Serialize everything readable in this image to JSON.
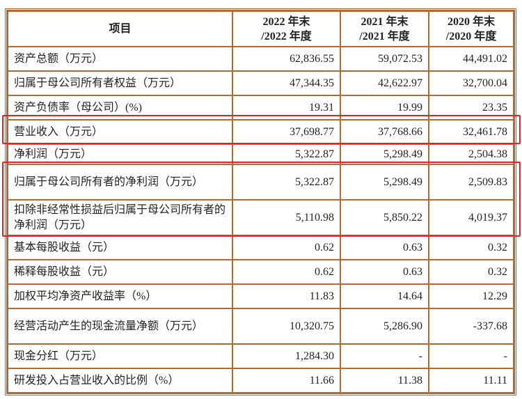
{
  "table": {
    "headers": [
      "项目",
      "2022年末\n/2022年度",
      "2021年末\n/2021年度",
      "2020年末\n/2020年度"
    ],
    "header_lines": [
      [
        "项目"
      ],
      [
        "2022 年末",
        "/2022 年度"
      ],
      [
        "2021 年末",
        "/2021 年度"
      ],
      [
        "2020 年末",
        "/2020 年度"
      ]
    ],
    "rows": [
      {
        "label": "资产总额（万元）",
        "values": [
          "62,836.55",
          "59,072.53",
          "44,491.02"
        ]
      },
      {
        "label": "归属于母公司所有者权益（万元）",
        "values": [
          "47,344.35",
          "42,622.97",
          "32,700.04"
        ]
      },
      {
        "label": "资产负债率（母公司）(%)",
        "values": [
          "19.31",
          "19.99",
          "23.35"
        ]
      },
      {
        "label": "营业收入（万元）",
        "values": [
          "37,698.77",
          "37,768.66",
          "32,461.78"
        ],
        "highlighted": true
      },
      {
        "label": "净利润（万元）",
        "values": [
          "5,322.87",
          "5,298.49",
          "2,504.38"
        ]
      },
      {
        "label": "归属于母公司所有者的净利润（万元）",
        "values": [
          "5,322.87",
          "5,298.49",
          "2,509.83"
        ],
        "highlighted": true
      },
      {
        "label": "扣除非经常性损益后归属于母公司所有者的净利润（万元）",
        "values": [
          "5,110.98",
          "5,850.22",
          "4,019.37"
        ],
        "highlighted": true
      },
      {
        "label": "基本每股收益（元）",
        "values": [
          "0.62",
          "0.63",
          "0.32"
        ]
      },
      {
        "label": "稀释每股收益（元）",
        "values": [
          "0.62",
          "0.63",
          "0.32"
        ]
      },
      {
        "label": "加权平均净资产收益率（%）",
        "values": [
          "11.83",
          "14.64",
          "12.29"
        ]
      },
      {
        "label": "经营活动产生的现金流量净额（万元）",
        "values": [
          "10,320.75",
          "5,286.90",
          "-337.68"
        ]
      },
      {
        "label": "现金分红（万元）",
        "values": [
          "1,284.30",
          "-",
          "-"
        ]
      },
      {
        "label": "研发投入占营业收入的比例（%）",
        "values": [
          "11.66",
          "11.38",
          "11.11"
        ]
      }
    ]
  },
  "colors": {
    "border": "#b8672e",
    "highlight": "#e8231f"
  }
}
